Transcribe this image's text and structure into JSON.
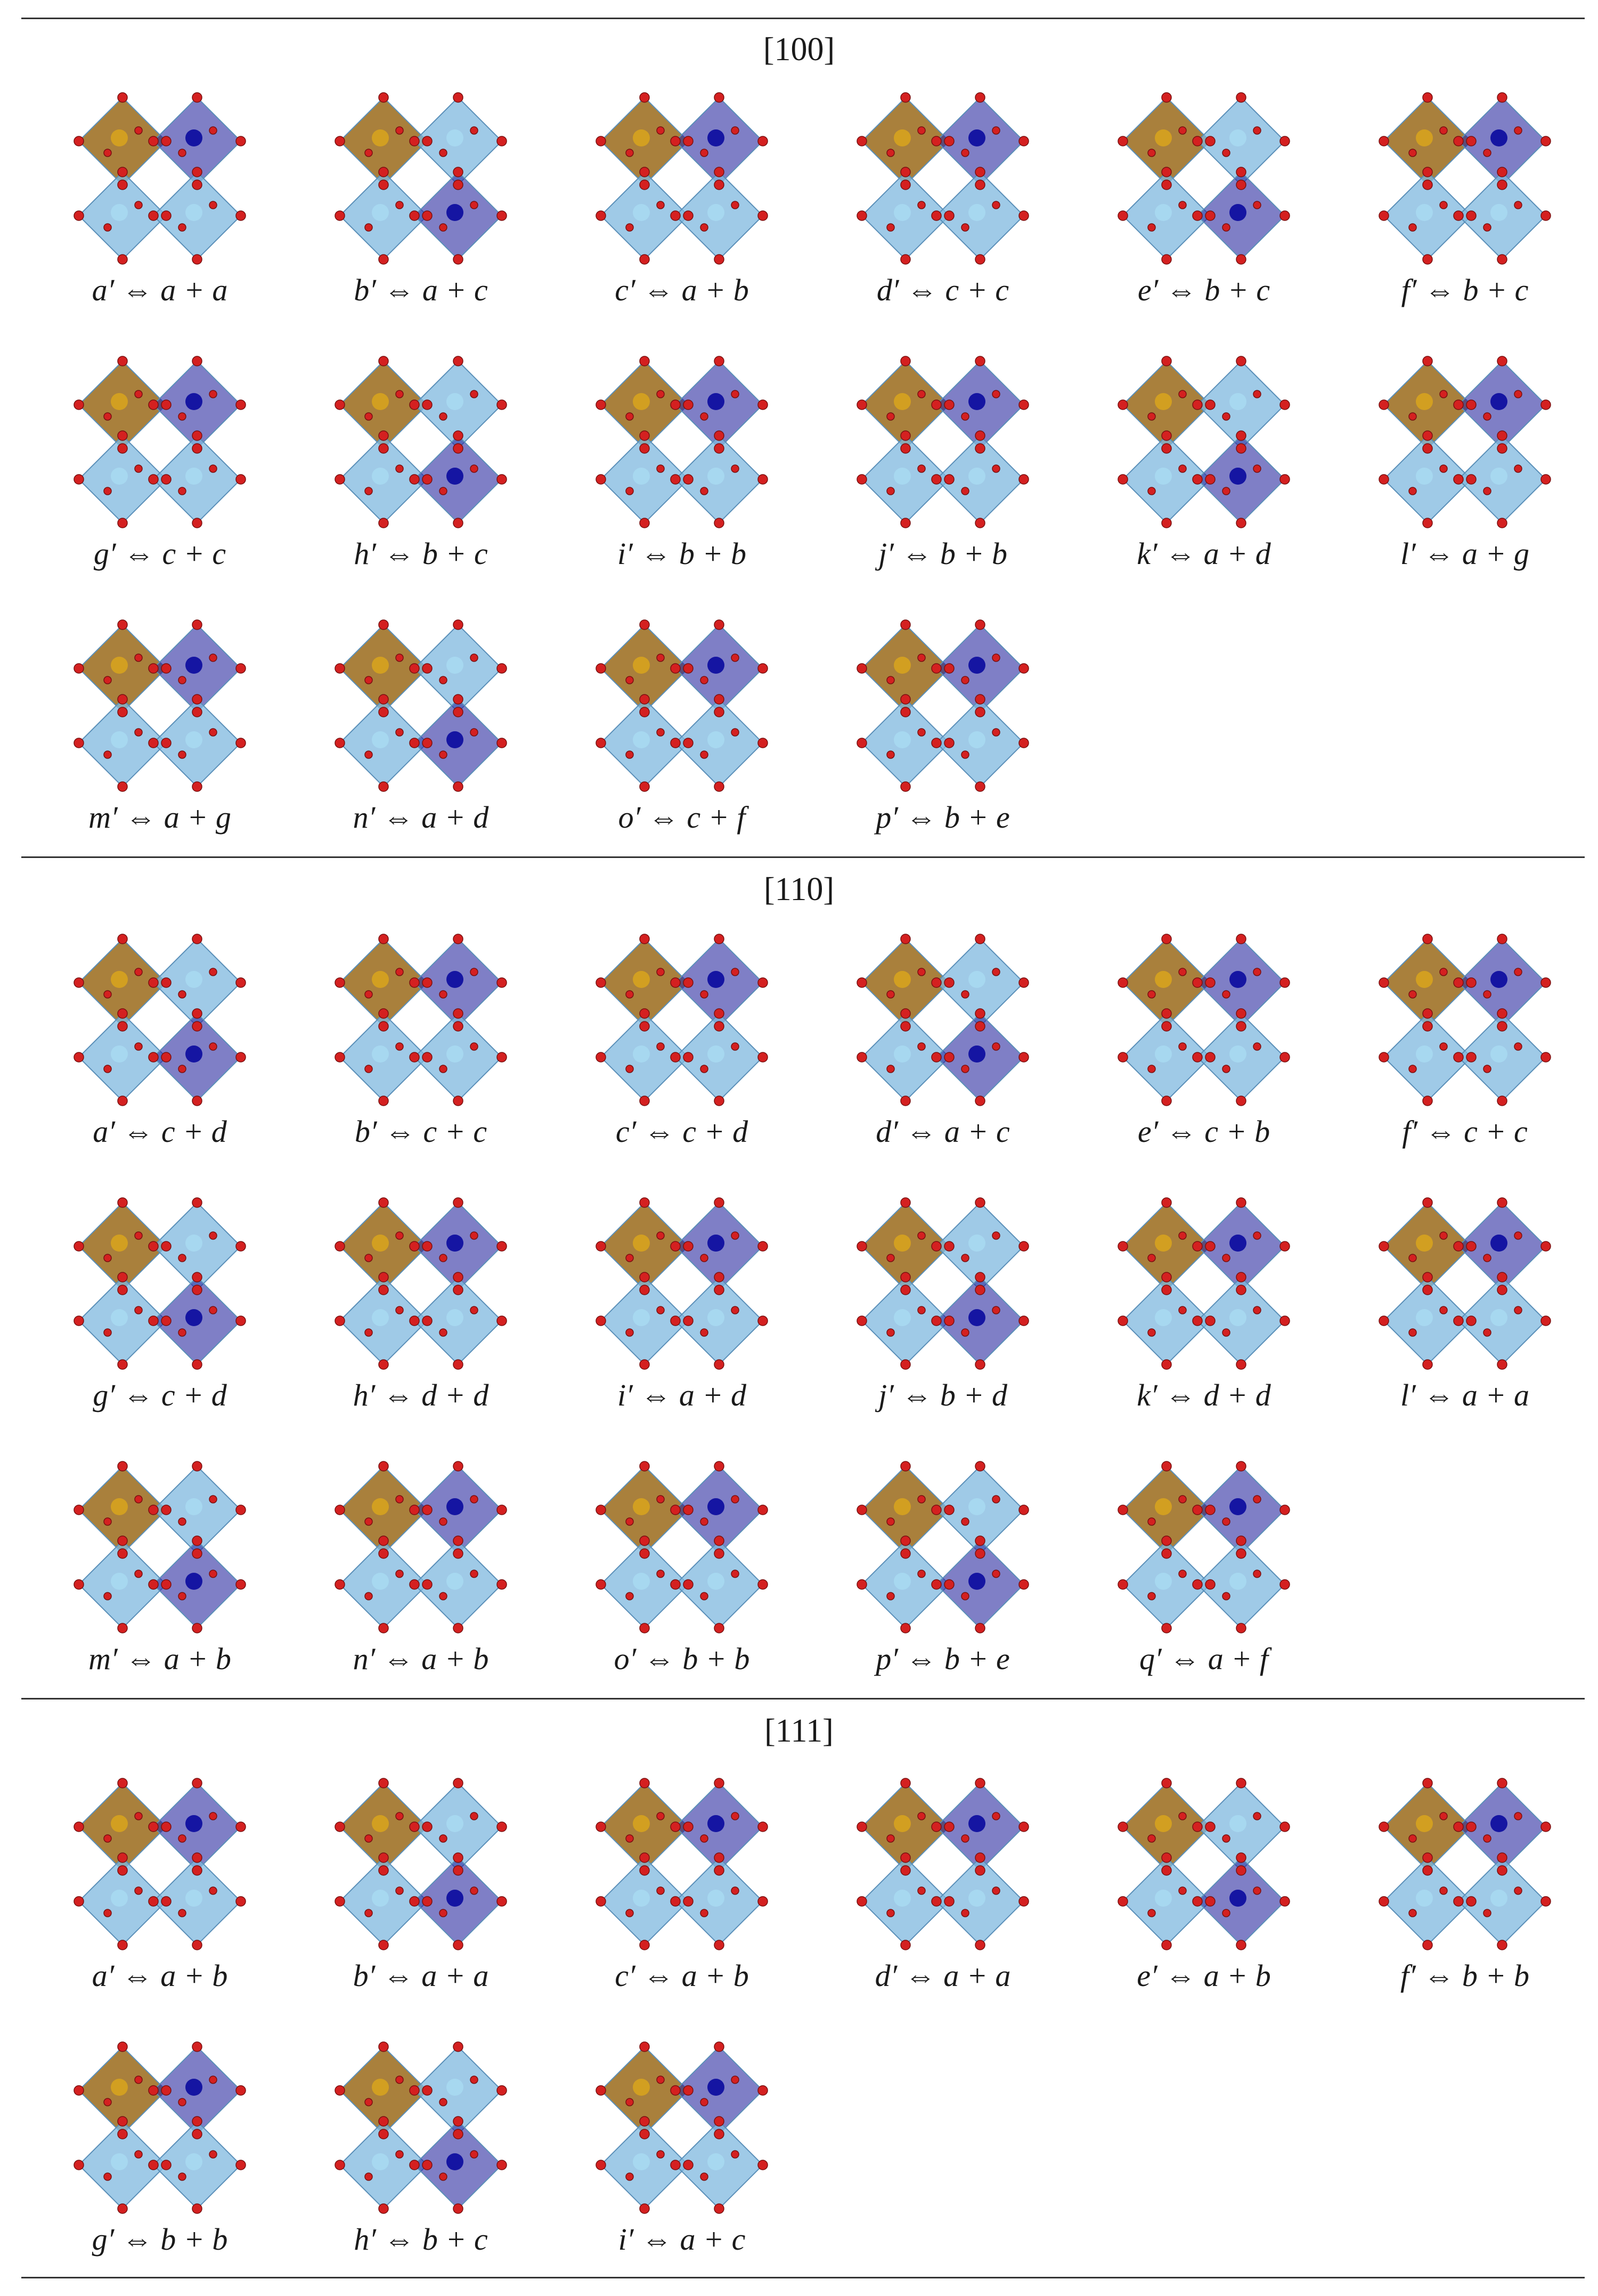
{
  "sections": [
    {
      "title": "[100]",
      "captions": [
        "a′ ⇔ a + a",
        "b′ ⇔ a + c",
        "c′ ⇔ a + b",
        "d′ ⇔ c + c",
        "e′ ⇔ b + c",
        "f′ ⇔ b + c",
        "g′ ⇔ c + c",
        "h′ ⇔ b + c",
        "i′ ⇔ b + b",
        "j′ ⇔ b + b",
        "k′ ⇔ a + d",
        "l′ ⇔ a + g",
        "m′ ⇔ a + g",
        "n′ ⇔ a + d",
        "o′ ⇔ c + f",
        "p′ ⇔ b + e"
      ]
    },
    {
      "title": "[110]",
      "captions": [
        "a′ ⇔ c + d",
        "b′ ⇔ c + c",
        "c′ ⇔ c + d",
        "d′ ⇔ a + c",
        "e′ ⇔ c + b",
        "f′ ⇔ c + c",
        "g′ ⇔ c + d",
        "h′ ⇔ d + d",
        "i′ ⇔ a + d",
        "j′ ⇔ b + d",
        "k′ ⇔ d + d",
        "l′ ⇔ a + a",
        "m′ ⇔ a + b",
        "n′ ⇔ a + b",
        "o′ ⇔ b + b",
        "p′ ⇔ b + e",
        "q′ ⇔ a + f"
      ]
    },
    {
      "title": "[111]",
      "captions": [
        "a′ ⇔ a + b",
        "b′ ⇔ a + a",
        "c′ ⇔ a + b",
        "d′ ⇔ a + a",
        "e′ ⇔ a + b",
        "f′ ⇔ b + b",
        "g′ ⇔ b + b",
        "h′ ⇔ b + c",
        "i′ ⇔ a + c"
      ]
    }
  ],
  "colors": {
    "octahedron": "#7fb8df",
    "oxygen": "#d42020",
    "highlight_brown": "#9a6a1a",
    "highlight_blue": "#2a2aa0",
    "rule": "#333333"
  }
}
